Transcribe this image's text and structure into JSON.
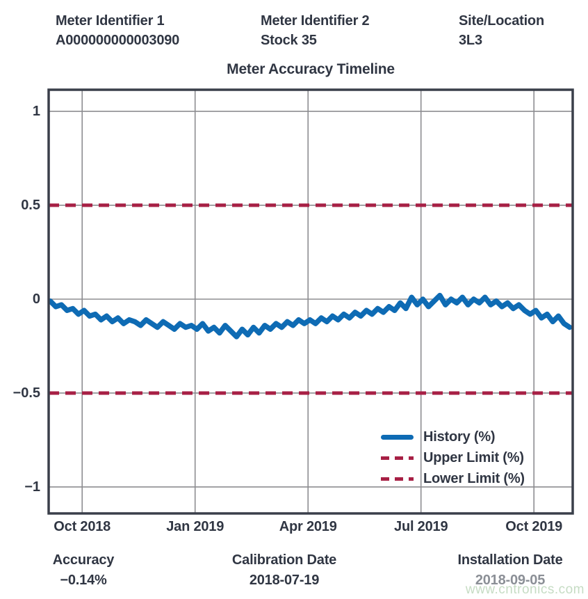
{
  "header": {
    "fields": [
      {
        "label": "Meter Identifier 1",
        "value": "A000000000003090"
      },
      {
        "label": "Meter Identifier 2",
        "value": "Stock 35"
      },
      {
        "label": "Site/Location",
        "value": "3L3"
      }
    ]
  },
  "chart_data": {
    "type": "line",
    "title": "Meter Accuracy Timeline",
    "xlabel": "",
    "ylabel": "",
    "x_unit": "months since 2018-10-01",
    "xlim": [
      -0.89,
      13.03
    ],
    "ylim": [
      -1.141,
      1.115
    ],
    "grid": true,
    "legend_position": "lower right",
    "xticks": [
      {
        "m": 0,
        "label": "Oct 2018"
      },
      {
        "m": 3,
        "label": "Jan 2019"
      },
      {
        "m": 6,
        "label": "Apr 2019"
      },
      {
        "m": 9,
        "label": "Jul 2019"
      },
      {
        "m": 12,
        "label": "Oct 2019"
      }
    ],
    "yticks": [
      {
        "v": 1,
        "label": "1"
      },
      {
        "v": 0.5,
        "label": "0.5"
      },
      {
        "v": 0,
        "label": "0"
      },
      {
        "v": -0.5,
        "label": "−0.5"
      },
      {
        "v": -1,
        "label": "−1"
      }
    ],
    "upper_limit": 0.5,
    "lower_limit": -0.5,
    "legend": [
      {
        "label": "History (%)",
        "style": "solid",
        "color": "#0e6bb4"
      },
      {
        "label": "Upper Limit (%)",
        "style": "dashed",
        "color": "#a72045"
      },
      {
        "label": "Lower Limit (%)",
        "style": "dashed",
        "color": "#a72045"
      }
    ],
    "series": [
      {
        "name": "History (%)",
        "color": "#0e6bb4",
        "points": [
          [
            -0.85,
            -0.01
          ],
          [
            -0.7,
            -0.04
          ],
          [
            -0.55,
            -0.03
          ],
          [
            -0.4,
            -0.06
          ],
          [
            -0.25,
            -0.05
          ],
          [
            -0.1,
            -0.08
          ],
          [
            0.05,
            -0.06
          ],
          [
            0.2,
            -0.09
          ],
          [
            0.35,
            -0.08
          ],
          [
            0.5,
            -0.11
          ],
          [
            0.65,
            -0.09
          ],
          [
            0.8,
            -0.12
          ],
          [
            0.95,
            -0.1
          ],
          [
            1.1,
            -0.13
          ],
          [
            1.25,
            -0.11
          ],
          [
            1.4,
            -0.12
          ],
          [
            1.55,
            -0.14
          ],
          [
            1.7,
            -0.11
          ],
          [
            1.85,
            -0.13
          ],
          [
            2,
            -0.15
          ],
          [
            2.15,
            -0.12
          ],
          [
            2.3,
            -0.14
          ],
          [
            2.45,
            -0.16
          ],
          [
            2.6,
            -0.13
          ],
          [
            2.75,
            -0.15
          ],
          [
            2.9,
            -0.14
          ],
          [
            3.05,
            -0.16
          ],
          [
            3.2,
            -0.13
          ],
          [
            3.35,
            -0.17
          ],
          [
            3.5,
            -0.15
          ],
          [
            3.65,
            -0.18
          ],
          [
            3.8,
            -0.14
          ],
          [
            3.95,
            -0.17
          ],
          [
            4.1,
            -0.2
          ],
          [
            4.25,
            -0.16
          ],
          [
            4.4,
            -0.19
          ],
          [
            4.55,
            -0.15
          ],
          [
            4.7,
            -0.18
          ],
          [
            4.85,
            -0.14
          ],
          [
            5,
            -0.16
          ],
          [
            5.15,
            -0.13
          ],
          [
            5.3,
            -0.15
          ],
          [
            5.45,
            -0.12
          ],
          [
            5.6,
            -0.14
          ],
          [
            5.75,
            -0.11
          ],
          [
            5.9,
            -0.13
          ],
          [
            6.05,
            -0.11
          ],
          [
            6.2,
            -0.13
          ],
          [
            6.35,
            -0.1
          ],
          [
            6.5,
            -0.12
          ],
          [
            6.65,
            -0.09
          ],
          [
            6.8,
            -0.11
          ],
          [
            6.95,
            -0.08
          ],
          [
            7.1,
            -0.1
          ],
          [
            7.25,
            -0.07
          ],
          [
            7.4,
            -0.09
          ],
          [
            7.55,
            -0.06
          ],
          [
            7.7,
            -0.08
          ],
          [
            7.85,
            -0.05
          ],
          [
            8,
            -0.07
          ],
          [
            8.15,
            -0.04
          ],
          [
            8.3,
            -0.06
          ],
          [
            8.45,
            -0.02
          ],
          [
            8.6,
            -0.05
          ],
          [
            8.75,
            0.01
          ],
          [
            8.9,
            -0.03
          ],
          [
            9.05,
            0
          ],
          [
            9.2,
            -0.04
          ],
          [
            9.35,
            -0.01
          ],
          [
            9.5,
            0.02
          ],
          [
            9.65,
            -0.03
          ],
          [
            9.8,
            0
          ],
          [
            9.95,
            -0.02
          ],
          [
            10.1,
            0.01
          ],
          [
            10.25,
            -0.03
          ],
          [
            10.4,
            0
          ],
          [
            10.55,
            -0.02
          ],
          [
            10.7,
            0.01
          ],
          [
            10.85,
            -0.03
          ],
          [
            11,
            -0.01
          ],
          [
            11.15,
            -0.04
          ],
          [
            11.3,
            -0.02
          ],
          [
            11.45,
            -0.05
          ],
          [
            11.6,
            -0.03
          ],
          [
            11.75,
            -0.06
          ],
          [
            11.9,
            -0.08
          ],
          [
            12.05,
            -0.06
          ],
          [
            12.2,
            -0.1
          ],
          [
            12.35,
            -0.08
          ],
          [
            12.5,
            -0.12
          ],
          [
            12.65,
            -0.09
          ],
          [
            12.8,
            -0.13
          ],
          [
            12.95,
            -0.15
          ]
        ]
      }
    ]
  },
  "footer": {
    "fields": [
      {
        "label": "Accuracy",
        "value": "−0.14%"
      },
      {
        "label": "Calibration Date",
        "value": "2018-07-19"
      },
      {
        "label": "Installation Date",
        "value": "2018-09-05"
      }
    ]
  },
  "watermark": "www.cntronics.com",
  "colors": {
    "history_blue": "#0e6bb4",
    "limit_red": "#a72045",
    "text_dark": "#303643",
    "grid_gray": "#8d8d91",
    "border_dark": "#3a3f4a",
    "watermark_green": "#c6dcc4",
    "installation_value_gray": "#8b8f96"
  }
}
